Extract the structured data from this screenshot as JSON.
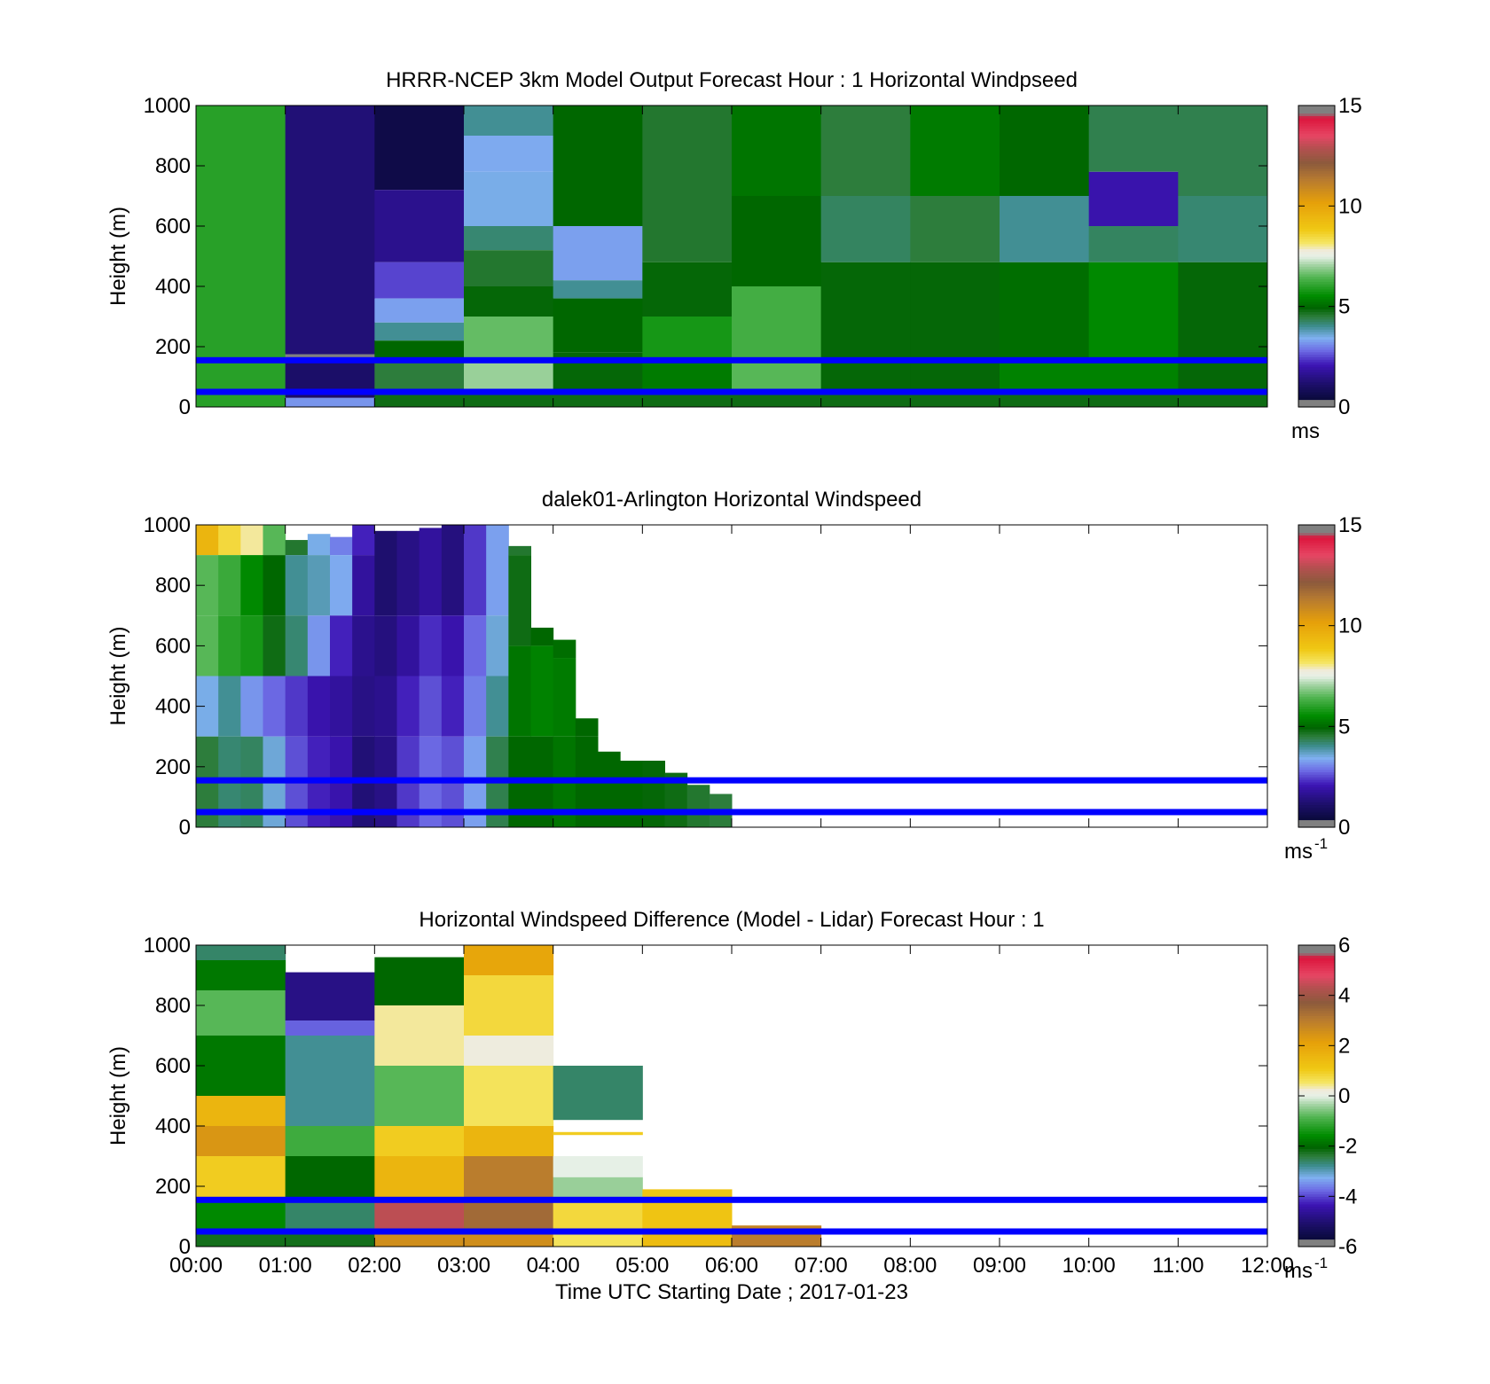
{
  "chart_data": [
    {
      "type": "heatmap",
      "title": "HRRR-NCEP 3km Model Output   Forecast Hour : 1 Horizontal Windpseed",
      "ylabel": "Height (m)",
      "xlabel": "",
      "ylim": [
        0,
        1000
      ],
      "xlim": [
        0,
        12
      ],
      "yticks": [
        "0",
        "200",
        "400",
        "600",
        "800",
        "1000"
      ],
      "colorbar": {
        "ticks": [
          "0",
          "5",
          "10",
          "15"
        ],
        "range": [
          0,
          15
        ],
        "unit": "ms",
        "unit_sup": ""
      },
      "reference_lines_m": [
        155,
        50
      ],
      "grid": false,
      "x": [
        0,
        1,
        2,
        3,
        4,
        5,
        6,
        7,
        8,
        9,
        10,
        11
      ],
      "segments": [
        [
          [
            0,
            1000,
            6.0
          ]
        ],
        [
          [
            175,
            1000,
            1.3
          ],
          [
            150,
            175,
            0.0
          ],
          [
            30,
            150,
            1.1
          ],
          [
            0,
            30,
            3.2
          ]
        ],
        [
          [
            720,
            1000,
            0.6
          ],
          [
            480,
            720,
            1.6
          ],
          [
            360,
            480,
            2.5
          ],
          [
            280,
            360,
            3.3
          ],
          [
            220,
            280,
            4.0
          ],
          [
            160,
            220,
            5.0
          ],
          [
            50,
            160,
            4.5
          ],
          [
            0,
            50,
            4.8
          ]
        ],
        [
          [
            900,
            1000,
            4.0
          ],
          [
            780,
            900,
            3.4
          ],
          [
            600,
            780,
            3.5
          ],
          [
            520,
            600,
            4.2
          ],
          [
            400,
            520,
            4.6
          ],
          [
            300,
            400,
            4.9
          ],
          [
            160,
            300,
            6.6
          ],
          [
            50,
            160,
            7.0
          ],
          [
            0,
            50,
            4.8
          ]
        ],
        [
          [
            600,
            1000,
            5.0
          ],
          [
            420,
            600,
            3.3
          ],
          [
            360,
            420,
            4.0
          ],
          [
            180,
            360,
            5.0
          ],
          [
            50,
            180,
            4.9
          ],
          [
            0,
            50,
            4.8
          ]
        ],
        [
          [
            480,
            1000,
            4.6
          ],
          [
            300,
            480,
            4.9
          ],
          [
            160,
            300,
            5.8
          ],
          [
            50,
            160,
            5.3
          ],
          [
            0,
            50,
            4.8
          ]
        ],
        [
          [
            700,
            1000,
            5.2
          ],
          [
            400,
            700,
            5.0
          ],
          [
            160,
            400,
            6.3
          ],
          [
            50,
            160,
            6.5
          ],
          [
            0,
            50,
            4.8
          ]
        ],
        [
          [
            700,
            1000,
            4.5
          ],
          [
            480,
            700,
            4.3
          ],
          [
            160,
            480,
            4.9
          ],
          [
            50,
            160,
            4.9
          ],
          [
            0,
            50,
            4.8
          ]
        ],
        [
          [
            700,
            1000,
            5.3
          ],
          [
            480,
            700,
            4.5
          ],
          [
            160,
            480,
            4.9
          ],
          [
            50,
            160,
            4.9
          ],
          [
            0,
            50,
            4.8
          ]
        ],
        [
          [
            700,
            1000,
            5.0
          ],
          [
            480,
            700,
            4.0
          ],
          [
            160,
            480,
            5.1
          ],
          [
            50,
            160,
            5.4
          ],
          [
            0,
            50,
            4.8
          ]
        ],
        [
          [
            780,
            1000,
            4.4
          ],
          [
            600,
            780,
            2.0
          ],
          [
            480,
            600,
            4.3
          ],
          [
            160,
            480,
            5.5
          ],
          [
            50,
            160,
            5.4
          ],
          [
            0,
            50,
            4.8
          ]
        ],
        [
          [
            700,
            1000,
            4.4
          ],
          [
            480,
            700,
            4.2
          ],
          [
            160,
            480,
            4.9
          ],
          [
            50,
            160,
            4.9
          ],
          [
            0,
            50,
            4.8
          ]
        ]
      ]
    },
    {
      "type": "heatmap",
      "title": "dalek01-Arlington  Horizontal Windspeed",
      "ylabel": "Height (m)",
      "xlabel": "",
      "ylim": [
        0,
        1000
      ],
      "xlim": [
        0,
        12
      ],
      "yticks": [
        "0",
        "200",
        "400",
        "600",
        "800",
        "1000"
      ],
      "colorbar": {
        "ticks": [
          "0",
          "5",
          "10",
          "15"
        ],
        "range": [
          0,
          15
        ],
        "unit": "ms",
        "unit_sup": "-1"
      },
      "reference_lines_m": [
        155,
        50
      ],
      "grid": false,
      "x": [
        0,
        0.25,
        0.5,
        0.75,
        1,
        1.25,
        1.5,
        1.75,
        2,
        2.25,
        2.5,
        2.75,
        3,
        3.25,
        3.5,
        3.75,
        4,
        4.25,
        4.5,
        4.75,
        5,
        5.25,
        5.5,
        5.75
      ],
      "segments": [
        [
          [
            900,
            1000,
            9.5
          ],
          [
            700,
            900,
            6.5
          ],
          [
            500,
            700,
            6.5
          ],
          [
            300,
            500,
            3.5
          ],
          [
            0,
            300,
            4.5
          ]
        ],
        [
          [
            900,
            1000,
            8.5
          ],
          [
            700,
            900,
            6.2
          ],
          [
            500,
            700,
            6.0
          ],
          [
            300,
            500,
            4.0
          ],
          [
            0,
            300,
            4.2
          ]
        ],
        [
          [
            900,
            1000,
            8.0
          ],
          [
            700,
            900,
            5.5
          ],
          [
            500,
            700,
            5.8
          ],
          [
            300,
            500,
            3.2
          ],
          [
            0,
            300,
            4.3
          ]
        ],
        [
          [
            900,
            1000,
            6.5
          ],
          [
            700,
            900,
            5.0
          ],
          [
            500,
            700,
            4.8
          ],
          [
            300,
            500,
            2.8
          ],
          [
            0,
            300,
            3.6
          ]
        ],
        [
          [
            900,
            950,
            4.6
          ],
          [
            700,
            900,
            4.0
          ],
          [
            500,
            700,
            4.2
          ],
          [
            300,
            500,
            2.4
          ],
          [
            0,
            300,
            2.6
          ]
        ],
        [
          [
            900,
            970,
            3.5
          ],
          [
            700,
            900,
            3.8
          ],
          [
            500,
            700,
            3.2
          ],
          [
            300,
            500,
            2.0
          ],
          [
            0,
            300,
            2.2
          ]
        ],
        [
          [
            900,
            960,
            3.0
          ],
          [
            700,
            900,
            3.4
          ],
          [
            500,
            700,
            2.2
          ],
          [
            300,
            500,
            1.8
          ],
          [
            0,
            300,
            2.0
          ]
        ],
        [
          [
            900,
            1000,
            2.2
          ],
          [
            700,
            900,
            1.8
          ],
          [
            500,
            700,
            1.6
          ],
          [
            300,
            500,
            1.5
          ],
          [
            0,
            300,
            1.3
          ]
        ],
        [
          [
            700,
            980,
            1.2
          ],
          [
            500,
            700,
            1.4
          ],
          [
            300,
            500,
            1.6
          ],
          [
            0,
            300,
            1.5
          ]
        ],
        [
          [
            700,
            980,
            1.5
          ],
          [
            500,
            700,
            1.8
          ],
          [
            300,
            500,
            2.2
          ],
          [
            0,
            300,
            2.4
          ]
        ],
        [
          [
            700,
            990,
            1.8
          ],
          [
            500,
            700,
            2.3
          ],
          [
            300,
            500,
            2.6
          ],
          [
            0,
            300,
            2.8
          ]
        ],
        [
          [
            700,
            1000,
            1.4
          ],
          [
            500,
            700,
            2.0
          ],
          [
            300,
            500,
            2.2
          ],
          [
            0,
            300,
            2.6
          ]
        ],
        [
          [
            700,
            1000,
            2.4
          ],
          [
            500,
            700,
            2.8
          ],
          [
            300,
            500,
            3.0
          ],
          [
            0,
            300,
            3.3
          ]
        ],
        [
          [
            700,
            1000,
            3.3
          ],
          [
            500,
            700,
            3.6
          ],
          [
            300,
            500,
            4.0
          ],
          [
            0,
            300,
            4.4
          ]
        ],
        [
          [
            900,
            930,
            4.6
          ],
          [
            600,
            900,
            4.8
          ],
          [
            300,
            600,
            5.2
          ],
          [
            0,
            300,
            5.0
          ]
        ],
        [
          [
            600,
            660,
            5.0
          ],
          [
            300,
            600,
            5.4
          ],
          [
            0,
            300,
            5.0
          ]
        ],
        [
          [
            560,
            620,
            5.1
          ],
          [
            300,
            560,
            5.3
          ],
          [
            0,
            300,
            5.2
          ]
        ],
        [
          [
            300,
            360,
            5.0
          ],
          [
            0,
            300,
            5.0
          ]
        ],
        [
          [
            0,
            250,
            5.0
          ]
        ],
        [
          [
            0,
            220,
            5.0
          ]
        ],
        [
          [
            0,
            220,
            4.9
          ]
        ],
        [
          [
            0,
            180,
            4.8
          ]
        ],
        [
          [
            0,
            140,
            4.6
          ]
        ],
        [
          [
            0,
            110,
            4.5
          ]
        ]
      ]
    },
    {
      "type": "heatmap",
      "title": "Horizontal Windspeed Difference (Model - Lidar) Forecast Hour : 1",
      "ylabel": "Height (m)",
      "xlabel": "Time UTC  Starting Date ; 2017-01-23",
      "xticks": [
        "00:00",
        "01:00",
        "02:00",
        "03:00",
        "04:00",
        "05:00",
        "06:00",
        "07:00",
        "08:00",
        "09:00",
        "10:00",
        "11:00",
        "12:00"
      ],
      "ylim": [
        0,
        1000
      ],
      "xlim": [
        0,
        12
      ],
      "yticks": [
        "0",
        "200",
        "400",
        "600",
        "800",
        "1000"
      ],
      "colorbar": {
        "ticks": [
          "-6",
          "-4",
          "-2",
          "0",
          "2",
          "4",
          "6"
        ],
        "range": [
          -6,
          6
        ],
        "unit": "ms",
        "unit_sup": "-1"
      },
      "reference_lines_m": [
        155,
        50
      ],
      "grid": false,
      "x": [
        0,
        1,
        2,
        3,
        4,
        5,
        6
      ],
      "segments": [
        [
          [
            950,
            1000,
            -2.6
          ],
          [
            850,
            950,
            -1.8
          ],
          [
            700,
            850,
            -0.8
          ],
          [
            500,
            700,
            -1.8
          ],
          [
            400,
            500,
            1.6
          ],
          [
            300,
            400,
            2.4
          ],
          [
            160,
            300,
            1.0
          ],
          [
            50,
            160,
            -1.6
          ],
          [
            0,
            50,
            -2.2
          ]
        ],
        [
          [
            750,
            910,
            -4.8
          ],
          [
            700,
            750,
            -3.8
          ],
          [
            400,
            700,
            -2.8
          ],
          [
            300,
            400,
            -1.0
          ],
          [
            160,
            300,
            -2.0
          ],
          [
            50,
            160,
            -2.6
          ],
          [
            0,
            50,
            -2.2
          ]
        ],
        [
          [
            800,
            960,
            -2.0
          ],
          [
            600,
            800,
            0.4
          ],
          [
            400,
            600,
            -0.8
          ],
          [
            300,
            400,
            1.0
          ],
          [
            160,
            300,
            1.6
          ],
          [
            50,
            160,
            4.4
          ],
          [
            0,
            50,
            2.6
          ]
        ],
        [
          [
            900,
            1000,
            2.0
          ],
          [
            700,
            900,
            0.8
          ],
          [
            600,
            700,
            0.2
          ],
          [
            400,
            600,
            0.6
          ],
          [
            300,
            400,
            1.6
          ],
          [
            160,
            300,
            3.0
          ],
          [
            50,
            160,
            3.4
          ],
          [
            0,
            50,
            2.6
          ]
        ],
        [
          [
            420,
            600,
            -2.6
          ],
          [
            370,
            380,
            1.0
          ],
          [
            230,
            300,
            0.0
          ],
          [
            160,
            230,
            -0.4
          ],
          [
            50,
            160,
            0.8
          ],
          [
            0,
            50,
            0.6
          ]
        ],
        [
          [
            60,
            190,
            1.2
          ],
          [
            0,
            60,
            1.4
          ]
        ],
        [
          [
            50,
            70,
            2.8
          ],
          [
            0,
            50,
            3.0
          ]
        ]
      ]
    }
  ]
}
